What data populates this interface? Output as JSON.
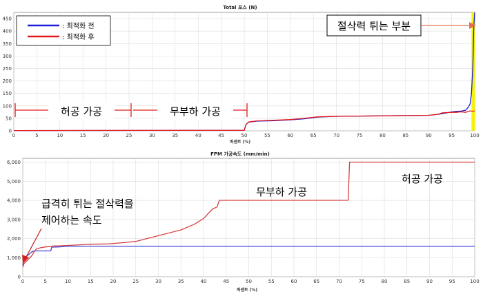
{
  "chart_data": [
    {
      "type": "line",
      "title": "Total 포스 (N)",
      "xlabel": "퍼센트 (%)",
      "ylabel": "",
      "xlim": [
        0,
        100
      ],
      "ylim": [
        0,
        475
      ],
      "x_ticks": [
        0,
        5,
        10,
        15,
        20,
        25,
        30,
        35,
        40,
        45,
        50,
        55,
        60,
        65,
        70,
        75,
        80,
        85,
        90,
        95,
        100
      ],
      "y_ticks": [
        0,
        50,
        100,
        150,
        200,
        250,
        300,
        350,
        400,
        450
      ],
      "grid": true,
      "legend_position": "top-left",
      "series": [
        {
          "name": ": 최적화 전",
          "color": "#1a1adb",
          "x": [
            0,
            50,
            50.4,
            51,
            53,
            56,
            60,
            63,
            66,
            70,
            75,
            80,
            85,
            90,
            92,
            94,
            95,
            96,
            97,
            98,
            98.5,
            99,
            99.3,
            99.6,
            99.8,
            100
          ],
          "y": [
            1,
            2,
            26,
            35,
            39,
            40,
            44,
            48,
            55,
            58,
            59,
            60,
            61,
            62,
            66,
            72,
            76,
            78,
            79,
            82,
            92,
            108,
            150,
            260,
            420,
            475
          ]
        },
        {
          "name": ": 최적화 후",
          "color": "#e41a1a",
          "x": [
            0,
            50,
            50.4,
            51,
            53,
            56,
            60,
            63,
            66,
            70,
            75,
            80,
            85,
            90,
            92,
            93,
            95,
            96,
            97,
            98,
            99,
            99.5,
            100
          ],
          "y": [
            1,
            2,
            26,
            36,
            40,
            42,
            45,
            50,
            56,
            58,
            59,
            60,
            61,
            62,
            66,
            72,
            74,
            74,
            76,
            74,
            80,
            78,
            80
          ]
        }
      ],
      "highlight_band": {
        "x": [
          99.3,
          100
        ],
        "color": "#f5f500"
      },
      "annotations": {
        "region_idle": "허공 가공",
        "region_noload": "무부하 가공",
        "spike": "절삭력 튀는 부분"
      }
    },
    {
      "type": "line",
      "title": "FPM 가공속도 (mm/min)",
      "xlabel": "퍼센트 (%)",
      "ylabel": "",
      "xlim": [
        0,
        100
      ],
      "ylim": [
        0,
        6200
      ],
      "x_ticks": [
        0,
        5,
        10,
        15,
        20,
        25,
        30,
        35,
        40,
        45,
        50,
        55,
        60,
        65,
        70,
        75,
        80,
        85,
        90,
        95,
        100
      ],
      "y_ticks": [
        0,
        1000,
        2000,
        3000,
        4000,
        5000,
        6000
      ],
      "y_tick_labels": [
        "0",
        "1,000",
        "2,000",
        "3,000",
        "4,000",
        "5,000",
        "6,000"
      ],
      "grid": true,
      "series": [
        {
          "name": "",
          "color": "#4040d8",
          "x": [
            0,
            0.4,
            1,
            2,
            2.5,
            6.2,
            6.4,
            8,
            10,
            100
          ],
          "y": [
            600,
            1000,
            1100,
            1300,
            1350,
            1350,
            1550,
            1560,
            1600,
            1600
          ]
        },
        {
          "name": "",
          "color": "#d84040",
          "x": [
            0,
            0.3,
            1,
            2,
            2.5,
            3,
            4,
            5,
            6,
            6.3,
            7,
            8,
            10,
            12,
            15,
            19,
            22,
            25,
            30,
            35,
            38,
            40,
            42,
            43,
            43.5,
            72,
            72.3,
            100
          ],
          "y": [
            500,
            700,
            850,
            1100,
            1300,
            1450,
            1520,
            1560,
            1580,
            1600,
            1610,
            1620,
            1640,
            1660,
            1700,
            1720,
            1780,
            1850,
            2150,
            2450,
            2750,
            3050,
            3550,
            3650,
            4000,
            4000,
            6000,
            6000
          ]
        }
      ],
      "annotations": {
        "control_note_line1": "급격히 튀는 절삭력을",
        "control_note_line2": "제어하는 속도",
        "region_noload": "무부하 가공",
        "region_idle": "허공 가공"
      }
    }
  ],
  "colors": {
    "grid": "#dcdcdc",
    "axis": "#444",
    "arrow_top": "#e07050",
    "arrow_bottom": "#cc2222"
  }
}
